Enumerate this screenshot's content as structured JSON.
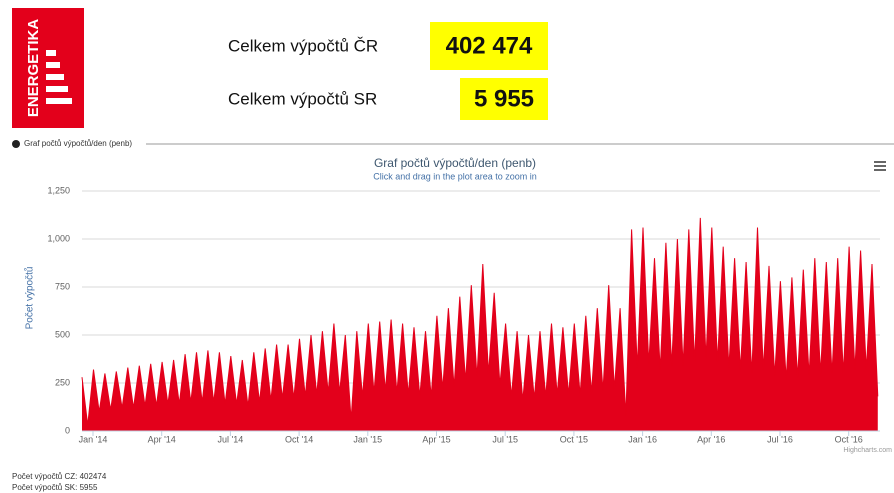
{
  "logo": "ENERGETIKA",
  "totals": [
    {
      "label": "Celkem výpočtů ČR",
      "value": "402 474"
    },
    {
      "label": "Celkem výpočtů SR",
      "value": "5 955"
    }
  ],
  "section_label": "Graf počtů výpočtů/den (penb)",
  "chart_data": {
    "type": "area",
    "title": "Graf počtů výpočtů/den (penb)",
    "subtitle": "Click and drag in the plot area to zoom in",
    "y_label": "Počet výpočtů",
    "credits": "Highcharts.com",
    "ylim": [
      0,
      1250
    ],
    "yticks": [
      0,
      250,
      500,
      750,
      {
        "value": 1000,
        "label": "1,000"
      },
      {
        "value": 1250,
        "label": "1,250"
      }
    ],
    "grid": true,
    "categories": [
      "Jan '14",
      null,
      null,
      null,
      null,
      null,
      null,
      null,
      null,
      null,
      null,
      null,
      "Apr '14",
      null,
      null,
      null,
      null,
      null,
      null,
      null,
      null,
      null,
      null,
      null,
      "Jul '14",
      null,
      null,
      null,
      null,
      null,
      null,
      null,
      null,
      null,
      null,
      null,
      "Oct '14",
      null,
      null,
      null,
      null,
      null,
      null,
      null,
      null,
      null,
      null,
      null,
      "Jan '15",
      null,
      null,
      null,
      null,
      null,
      null,
      null,
      null,
      null,
      null,
      null,
      "Apr '15",
      null,
      null,
      null,
      null,
      null,
      null,
      null,
      null,
      null,
      null,
      null,
      "Jul '15",
      null,
      null,
      null,
      null,
      null,
      null,
      null,
      null,
      null,
      null,
      null,
      "Oct '15",
      null,
      null,
      null,
      null,
      null,
      null,
      null,
      null,
      null,
      null,
      null,
      "Jan '16",
      null,
      null,
      null,
      null,
      null,
      null,
      null,
      null,
      null,
      null,
      null,
      "Apr '16",
      null,
      null,
      null,
      null,
      null,
      null,
      null,
      null,
      null,
      null,
      null,
      "Jul '16",
      null,
      null,
      null,
      null,
      null,
      null,
      null,
      null,
      null,
      null,
      null,
      "Oct '16",
      null,
      null,
      null,
      null,
      null,
      null,
      null
    ],
    "series": [
      {
        "name": "Počet výpočtů",
        "color": "#e3001b",
        "values": [
          280,
          30,
          320,
          100,
          300,
          110,
          310,
          120,
          330,
          120,
          340,
          130,
          350,
          130,
          360,
          140,
          370,
          140,
          400,
          150,
          410,
          150,
          420,
          150,
          410,
          140,
          390,
          140,
          370,
          130,
          410,
          150,
          430,
          160,
          450,
          170,
          450,
          170,
          480,
          180,
          500,
          190,
          520,
          200,
          560,
          200,
          500,
          60,
          520,
          180,
          560,
          200,
          570,
          210,
          580,
          200,
          560,
          190,
          540,
          180,
          520,
          180,
          600,
          220,
          640,
          230,
          700,
          260,
          760,
          280,
          870,
          300,
          720,
          240,
          560,
          180,
          520,
          160,
          500,
          170,
          520,
          180,
          560,
          190,
          540,
          190,
          560,
          190,
          600,
          200,
          640,
          210,
          760,
          220,
          640,
          80,
          1050,
          330,
          1060,
          350,
          900,
          320,
          980,
          340,
          1000,
          340,
          1050,
          360,
          1110,
          380,
          1060,
          360,
          960,
          330,
          900,
          320,
          880,
          300,
          1060,
          320,
          860,
          290,
          780,
          270,
          800,
          280,
          840,
          290,
          900,
          300,
          880,
          300,
          900,
          300,
          960,
          320,
          940,
          320,
          870,
          180
        ]
      }
    ]
  },
  "footer": [
    "Počet výpočtů CZ: 402474",
    "Počet výpočtů SK: 5955"
  ]
}
